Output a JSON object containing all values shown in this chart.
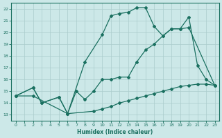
{
  "xlabel": "Humidex (Indice chaleur)",
  "bg_color": "#cce8e8",
  "grid_color": "#aacccc",
  "line_color": "#1a7060",
  "xlim": [
    -0.5,
    23.5
  ],
  "ylim": [
    12.5,
    22.5
  ],
  "xticks": [
    0,
    1,
    2,
    3,
    4,
    5,
    6,
    7,
    8,
    9,
    10,
    11,
    12,
    13,
    14,
    15,
    16,
    17,
    18,
    19,
    20,
    21,
    22,
    23
  ],
  "yticks": [
    13,
    14,
    15,
    16,
    17,
    18,
    19,
    20,
    21,
    22
  ],
  "line1_x": [
    0,
    2,
    3,
    5,
    6,
    8,
    10,
    11,
    12,
    13,
    14,
    15,
    16,
    17,
    18,
    19,
    20,
    21,
    22,
    23
  ],
  "line1_y": [
    14.6,
    15.3,
    14.0,
    14.5,
    13.1,
    17.5,
    19.8,
    21.4,
    21.6,
    21.7,
    22.1,
    22.1,
    20.5,
    19.7,
    20.3,
    20.3,
    21.3,
    17.2,
    16.0,
    15.5
  ],
  "line2_x": [
    0,
    2,
    3,
    5,
    6,
    7,
    8,
    9,
    10,
    11,
    12,
    13,
    14,
    15,
    16,
    17,
    18,
    19,
    20,
    23
  ],
  "line2_y": [
    14.6,
    15.3,
    14.0,
    14.5,
    13.1,
    15.0,
    14.3,
    15.0,
    16.0,
    16.0,
    16.2,
    16.2,
    17.5,
    18.5,
    19.0,
    19.7,
    20.3,
    20.3,
    20.4,
    15.5
  ],
  "line3_x": [
    0,
    2,
    6,
    9,
    10,
    11,
    12,
    13,
    14,
    15,
    16,
    17,
    18,
    19,
    20,
    21,
    22,
    23
  ],
  "line3_y": [
    14.6,
    14.6,
    13.1,
    13.3,
    13.5,
    13.7,
    14.0,
    14.2,
    14.4,
    14.6,
    14.8,
    15.0,
    15.2,
    15.4,
    15.5,
    15.6,
    15.6,
    15.5
  ]
}
